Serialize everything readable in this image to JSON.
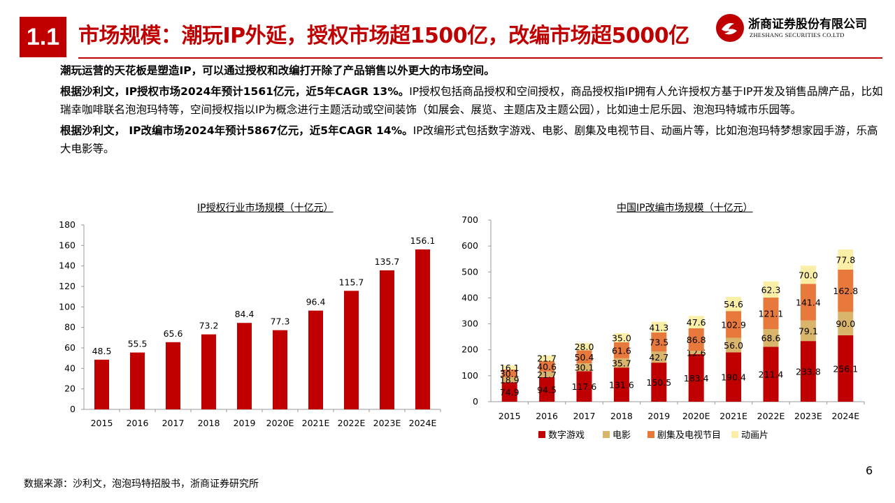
{
  "header": {
    "section_number": "1.1",
    "title": "市场规模：潮玩IP外延，授权市场超1500亿，改编市场超5000亿",
    "logo_cn": "浙商证券股份有限公司",
    "logo_en": "ZHESHANG SECURITIES CO.LTD",
    "brand_color": "#c00000"
  },
  "body": {
    "p1": "潮玩运营的天花板是塑造IP，可以通过授权和改编打开除了产品销售以外更大的市场空间。",
    "p2_bold": "根据沙利文，IP授权市场2024年预计1561亿元，近5年CAGR 13%。",
    "p2_rest": "IP授权包括商品授权和空间授权，商品授权指IP拥有人允许授权方基于IP开发及销售品牌产品，比如瑞幸咖啡联名泡泡玛特等，空间授权指以IP为概念进行主题活动或空间装饰（如展会、展览、主题店及主题公园），比如迪士尼乐园、泡泡玛特城市乐园等。",
    "p3_bold": "根据沙利文， IP改编市场2024年预计5867亿元，近5年CAGR 14%。",
    "p3_rest": "IP改编形式包括数字游戏、电影、剧集及电视节目、动画片等，比如泡泡玛特梦想家园手游，乐高大电影等。"
  },
  "chart_data": [
    {
      "type": "bar",
      "title": "IP授权行业市场规模（十亿元）",
      "categories": [
        "2015",
        "2016",
        "2017",
        "2018",
        "2019",
        "2020E",
        "2021E",
        "2022E",
        "2023E",
        "2024E"
      ],
      "values": [
        48.5,
        55.5,
        65.6,
        73.2,
        84.4,
        77.3,
        96.4,
        115.7,
        135.7,
        156.1
      ],
      "labels": [
        "48.5",
        "55.5",
        "65.6",
        "73.2",
        "84.4",
        "77.3",
        "96.4",
        "115.7",
        "135.7",
        "156.1"
      ],
      "ylim": [
        0,
        180
      ],
      "yticks": [
        "0",
        "20",
        "40",
        "60",
        "80",
        "100",
        "120",
        "140",
        "160",
        "180"
      ],
      "color": "#c00000"
    },
    {
      "type": "bar",
      "stacked": true,
      "title": "中国IP改编市场规模（十亿元）",
      "categories": [
        "2015",
        "2016",
        "2017",
        "2018",
        "2019",
        "2020E",
        "2021E",
        "2022E",
        "2023E",
        "2024E"
      ],
      "ylim": [
        0,
        700
      ],
      "yticks": [
        "0",
        "100",
        "200",
        "300",
        "400",
        "500",
        "600",
        "700"
      ],
      "legend_position": "bottom",
      "series": [
        {
          "name": "数字游戏",
          "color": "#c00000",
          "values": [
            74.9,
            94.5,
            117.6,
            131.6,
            150.5,
            183.4,
            190.4,
            211.4,
            233.8,
            256.1
          ],
          "labels": [
            "74.9",
            "94.5",
            "117.6",
            "131.6",
            "150.5",
            "183.4",
            "190.4",
            "211.4",
            "233.8",
            "256.1"
          ]
        },
        {
          "name": "电影",
          "color": "#d9b56b",
          "values": [
            18.9,
            21.7,
            30.1,
            35.7,
            42.7,
            12.6,
            56.0,
            68.6,
            79.1,
            90.0
          ],
          "labels": [
            "18.9",
            "21.7",
            "30.1",
            "35.7",
            "42.7",
            "12.6",
            "56.0",
            "68.6",
            "79.1",
            "90.0"
          ]
        },
        {
          "name": "剧集及电视节目",
          "color": "#e8793c",
          "values": [
            30.1,
            40.6,
            50.4,
            61.6,
            73.5,
            86.8,
            102.9,
            121.1,
            141.4,
            162.8
          ],
          "labels": [
            "30.1",
            "40.6",
            "50.4",
            "61.6",
            "73.5",
            "86.8",
            "102.9",
            "121.1",
            "141.4",
            "162.8"
          ]
        },
        {
          "name": "动画片",
          "color": "#fbefa8",
          "values": [
            16.1,
            21.7,
            28.0,
            35.0,
            41.3,
            47.6,
            54.6,
            62.3,
            70.0,
            77.8
          ],
          "labels": [
            "16.1",
            "21.7",
            "28.0",
            "35.0",
            "41.3",
            "47.6",
            "54.6",
            "62.3",
            "70.0",
            "77.8"
          ]
        }
      ]
    }
  ],
  "footer": {
    "source": "数据来源：沙利文，泡泡玛特招股书，浙商证券研究所",
    "page_number": "6"
  }
}
